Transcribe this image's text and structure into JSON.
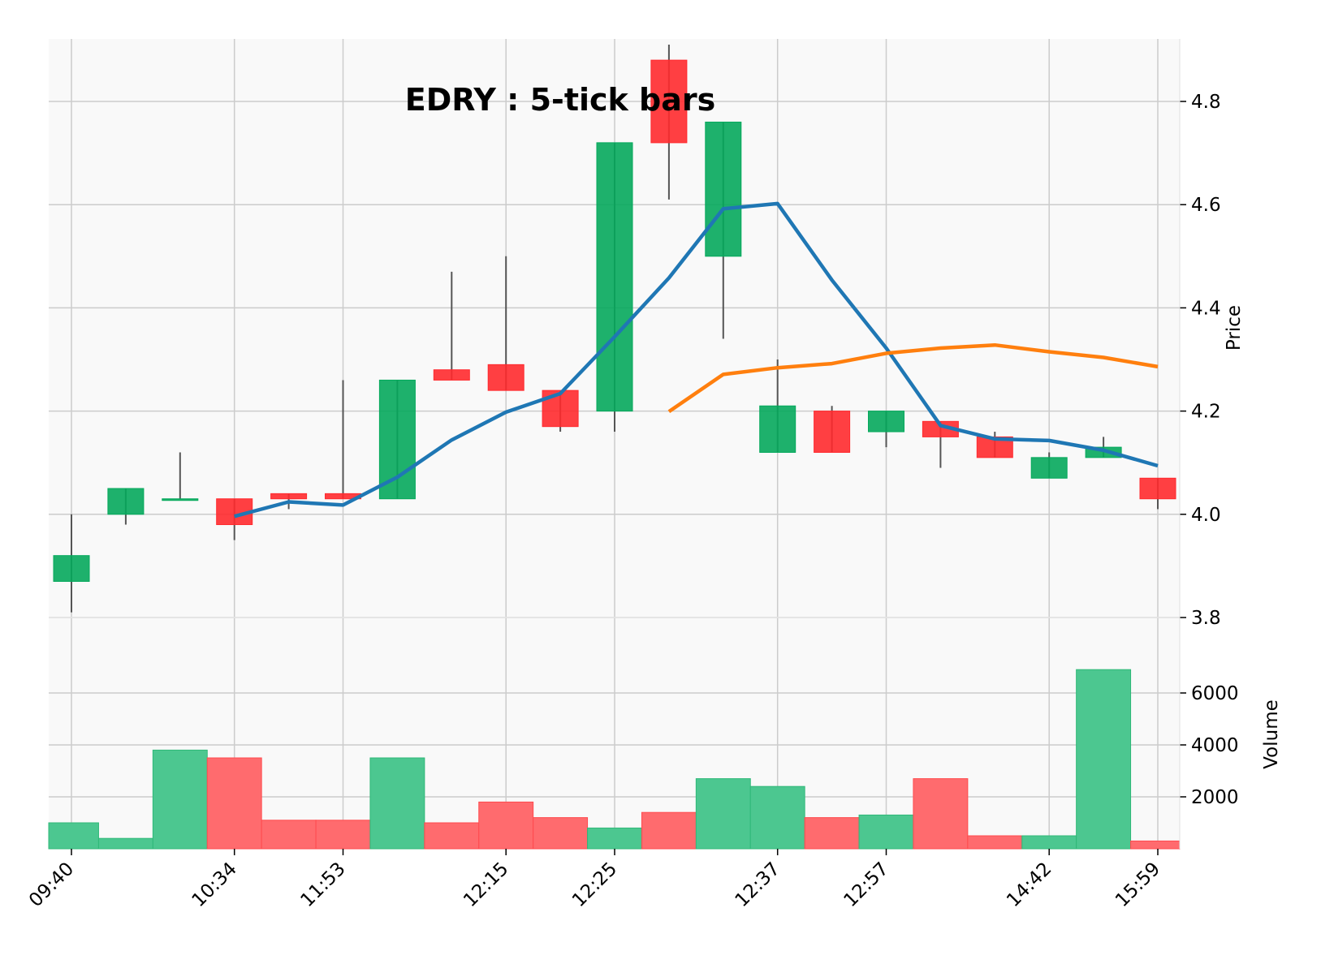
{
  "chart_data": {
    "type": "candlestick",
    "title": "EDRY : 5-tick bars",
    "ylabel": "Price",
    "ylabel_lower": "Volume",
    "ylim": [
      3.8,
      4.9
    ],
    "volume_ylim": [
      0,
      7200
    ],
    "price_ticks": [
      "3.8",
      "4.0",
      "4.2",
      "4.4",
      "4.6",
      "4.8"
    ],
    "volume_ticks": [
      "2000",
      "4000",
      "6000"
    ],
    "x_tick_labels": [
      {
        "index": 0,
        "label": "09:40"
      },
      {
        "index": 3,
        "label": "10:34"
      },
      {
        "index": 5,
        "label": "11:53"
      },
      {
        "index": 8,
        "label": "12:15"
      },
      {
        "index": 10,
        "label": "12:25"
      },
      {
        "index": 13,
        "label": "12:37"
      },
      {
        "index": 15,
        "label": "12:57"
      },
      {
        "index": 18,
        "label": "14:42"
      },
      {
        "index": 20,
        "label": "15:59"
      }
    ],
    "bars": [
      {
        "open": 3.87,
        "high": 4.0,
        "low": 3.81,
        "close": 3.92,
        "volume": 1000
      },
      {
        "open": 4.0,
        "high": 4.05,
        "low": 3.98,
        "close": 4.05,
        "volume": 400
      },
      {
        "open": 4.03,
        "high": 4.12,
        "low": 4.03,
        "close": 4.03,
        "volume": 3800
      },
      {
        "open": 4.03,
        "high": 4.03,
        "low": 3.95,
        "close": 3.98,
        "volume": 3500
      },
      {
        "open": 4.04,
        "high": 4.04,
        "low": 4.01,
        "close": 4.03,
        "volume": 1100
      },
      {
        "open": 4.04,
        "high": 4.26,
        "low": 4.03,
        "close": 4.03,
        "volume": 1100
      },
      {
        "open": 4.03,
        "high": 4.26,
        "low": 4.03,
        "close": 4.26,
        "volume": 3500
      },
      {
        "open": 4.28,
        "high": 4.47,
        "low": 4.26,
        "close": 4.26,
        "volume": 1000
      },
      {
        "open": 4.29,
        "high": 4.5,
        "low": 4.24,
        "close": 4.24,
        "volume": 1800
      },
      {
        "open": 4.24,
        "high": 4.24,
        "low": 4.16,
        "close": 4.17,
        "volume": 1200
      },
      {
        "open": 4.2,
        "high": 4.72,
        "low": 4.16,
        "close": 4.72,
        "volume": 800
      },
      {
        "open": 4.88,
        "high": 4.91,
        "low": 4.61,
        "close": 4.72,
        "volume": 1400
      },
      {
        "open": 4.5,
        "high": 4.76,
        "low": 4.34,
        "close": 4.76,
        "volume": 2700
      },
      {
        "open": 4.12,
        "high": 4.3,
        "low": 4.12,
        "close": 4.21,
        "volume": 2400
      },
      {
        "open": 4.2,
        "high": 4.21,
        "low": 4.12,
        "close": 4.12,
        "volume": 1200
      },
      {
        "open": 4.16,
        "high": 4.2,
        "low": 4.13,
        "close": 4.2,
        "volume": 1300
      },
      {
        "open": 4.18,
        "high": 4.18,
        "low": 4.09,
        "close": 4.15,
        "volume": 2700
      },
      {
        "open": 4.15,
        "high": 4.16,
        "low": 4.11,
        "close": 4.11,
        "volume": 500
      },
      {
        "open": 4.07,
        "high": 4.12,
        "low": 4.07,
        "close": 4.11,
        "volume": 500
      },
      {
        "open": 4.11,
        "high": 4.15,
        "low": 4.11,
        "close": 4.13,
        "volume": 6900
      },
      {
        "open": 4.07,
        "high": 4.07,
        "low": 4.01,
        "close": 4.03,
        "volume": 300
      }
    ],
    "moving_averages": [
      {
        "color": "#1f77b4",
        "start_index": 3,
        "values": [
          3.996,
          4.024,
          4.018,
          4.072,
          4.144,
          4.198,
          4.234,
          4.344,
          4.458,
          4.592,
          4.602,
          4.454,
          4.322,
          4.172,
          4.146,
          4.143,
          4.124,
          4.094
        ]
      },
      {
        "color": "#ff7f0e",
        "start_index": 11,
        "values": [
          4.199,
          4.271,
          4.284,
          4.292,
          4.312,
          4.322,
          4.328,
          4.315,
          4.304,
          4.286
        ]
      }
    ],
    "up_color": "#05a95c",
    "down_color": "#ff2a2e",
    "grid": true,
    "background": "#f9f9f9"
  }
}
